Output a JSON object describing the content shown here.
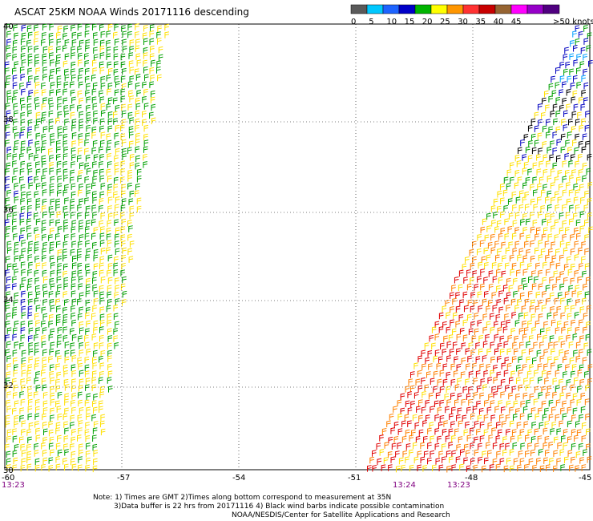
{
  "title": "ASCAT 25KM NOAA Winds 20171116 descending",
  "legend": {
    "unit_label": ">50 knots",
    "ticks": [
      "0",
      "5",
      "10",
      "15",
      "20",
      "25",
      "30",
      "35",
      "40",
      "45"
    ],
    "colors": [
      "#5a5a5a",
      "#00c8ff",
      "#1e64ff",
      "#0000c8",
      "#00b400",
      "#ffff00",
      "#ff9600",
      "#ff3232",
      "#c80000",
      "#966432",
      "#ff00ff",
      "#9600c8",
      "#500080"
    ]
  },
  "axes": {
    "lon_ticks": [
      "-60",
      "-57",
      "-54",
      "-51",
      "-48",
      "-45"
    ],
    "lat_ticks": [
      "40",
      "38",
      "36",
      "34",
      "32",
      "30"
    ]
  },
  "pass_times": [
    "13:23",
    "13:24",
    "13:23"
  ],
  "notes": {
    "line1": "Note: 1) Times are GMT 2)Times along bottom correspond to measurement at 35N",
    "line2": "3)Data buffer is 22 hrs from 20171116 4) Black wind barbs indicate possible contamination",
    "line3": "NOAA/NESDIS/Center for Satellite Applications and Research"
  },
  "swath_colors": {
    "green": "#00a000",
    "yellow": "#ffe000",
    "blue": "#0000c0",
    "orange": "#ff8000",
    "red": "#e00000",
    "black": "#000000",
    "cyan": "#00a0ff"
  }
}
